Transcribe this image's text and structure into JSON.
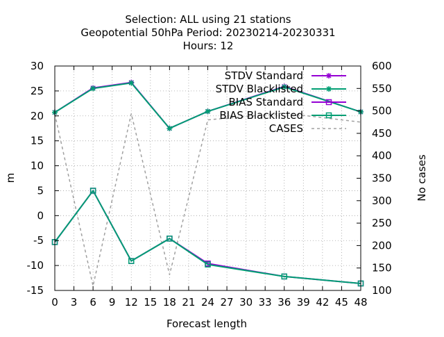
{
  "chart_data": {
    "type": "line",
    "title_lines": [
      "Selection: ALL using    21 stations",
      "Geopotential 50hPa   Period: 20230214-20230331",
      "Hours:  12"
    ],
    "xlabel": "Forecast length",
    "ylabel": "m",
    "y2label": "No cases",
    "xlim": [
      0,
      48
    ],
    "ylim": [
      -15,
      30
    ],
    "y2lim": [
      100,
      600
    ],
    "x_ticks": [
      "0",
      "3",
      "6",
      "9",
      "12",
      "15",
      "18",
      "21",
      "24",
      "27",
      "30",
      "33",
      "36",
      "39",
      "42",
      "45",
      "48"
    ],
    "y_ticks": [
      "-15",
      "-10",
      "-5",
      "0",
      "5",
      "10",
      "15",
      "20",
      "25",
      "30"
    ],
    "y2_ticks": [
      "100",
      "150",
      "200",
      "250",
      "300",
      "350",
      "400",
      "450",
      "500",
      "550",
      "600"
    ],
    "grid": true,
    "legend_position": "top-right",
    "series": [
      {
        "name": "STDV Standard",
        "axis": "y1",
        "color": "#9400d3",
        "marker": "star",
        "dash": false,
        "points": [
          [
            0,
            20.7
          ],
          [
            6,
            25.6
          ],
          [
            12,
            26.7
          ],
          [
            18,
            17.5
          ],
          [
            24,
            20.9
          ],
          [
            36,
            25.9
          ],
          [
            48,
            20.8
          ]
        ]
      },
      {
        "name": "STDV Blacklisted",
        "axis": "y1",
        "color": "#009e73",
        "marker": "star",
        "dash": false,
        "points": [
          [
            0,
            20.7
          ],
          [
            6,
            25.5
          ],
          [
            12,
            26.6
          ],
          [
            18,
            17.5
          ],
          [
            24,
            20.9
          ],
          [
            36,
            25.8
          ],
          [
            48,
            20.8
          ]
        ]
      },
      {
        "name": "BIAS Standard",
        "axis": "y1",
        "color": "#9400d3",
        "marker": "square",
        "dash": false,
        "points": [
          [
            0,
            -5.3
          ],
          [
            6,
            5.0
          ],
          [
            12,
            -9.1
          ],
          [
            18,
            -4.6
          ],
          [
            24,
            -9.6
          ],
          [
            36,
            -12.2
          ],
          [
            48,
            -13.6
          ]
        ]
      },
      {
        "name": "BIAS Blacklisted",
        "axis": "y1",
        "color": "#009e73",
        "marker": "square",
        "dash": false,
        "points": [
          [
            0,
            -5.3
          ],
          [
            6,
            5.0
          ],
          [
            12,
            -9.1
          ],
          [
            18,
            -4.6
          ],
          [
            24,
            -9.8
          ],
          [
            36,
            -12.2
          ],
          [
            48,
            -13.6
          ]
        ]
      },
      {
        "name": "CASES",
        "axis": "y2",
        "color": "#a0a0a0",
        "marker": "none",
        "dash": true,
        "points": [
          [
            0,
            493
          ],
          [
            6,
            110
          ],
          [
            12,
            494
          ],
          [
            18,
            135
          ],
          [
            24,
            480
          ],
          [
            36,
            495
          ],
          [
            48,
            475
          ]
        ]
      }
    ]
  }
}
